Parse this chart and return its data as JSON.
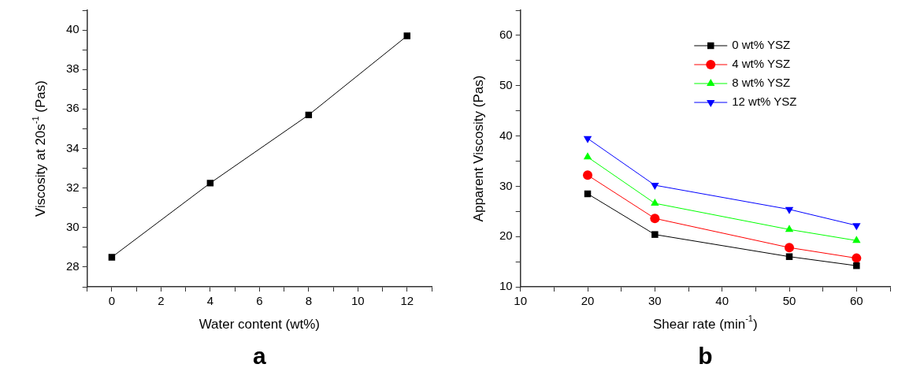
{
  "chart_data": [
    {
      "type": "line",
      "xlabel": "Water content (wt%)",
      "ylabel": "Viscosity at 20s$^{-1}$ (Pas)",
      "x": [
        0,
        4,
        8,
        12
      ],
      "series": [
        {
          "color": "#000000",
          "values": [
            28.5,
            32.25,
            35.7,
            39.7
          ],
          "marker": "square"
        }
      ],
      "xlim": [
        -1,
        13
      ],
      "xticks": [
        {
          "value": -1,
          "label": null
        },
        0,
        {
          "value": 1,
          "label": null
        },
        2,
        {
          "value": 3,
          "label": null
        },
        4,
        {
          "value": 5,
          "label": null
        },
        6,
        {
          "value": 7,
          "label": null
        },
        8,
        {
          "value": 9,
          "label": null
        },
        10,
        {
          "value": 11,
          "label": null
        },
        12,
        {
          "value": 13,
          "label": null
        }
      ],
      "ylim": [
        27,
        41
      ],
      "yticks": [
        {
          "value": 27,
          "label": null
        },
        28,
        {
          "value": 29,
          "label": null
        },
        30,
        {
          "value": 31,
          "label": null
        },
        32,
        {
          "value": 33,
          "label": null
        },
        34,
        {
          "value": 35,
          "label": null
        },
        36,
        {
          "value": 37,
          "label": null
        },
        38,
        {
          "value": 39,
          "label": null
        },
        40,
        {
          "value": 41,
          "label": null
        }
      ],
      "grid": false,
      "legend": false,
      "annotations": [
        "a"
      ]
    },
    {
      "type": "line",
      "xlabel": "Shear rate (min$^{-1}$)",
      "ylabel": "Apparent Viscosity (Pas)",
      "x": [
        20,
        30,
        50,
        60
      ],
      "series": [
        {
          "name": "0 wt% YSZ",
          "color": "#000000",
          "marker": "square",
          "values": [
            28.5,
            20.4,
            16,
            14.2
          ]
        },
        {
          "name": "4 wt% YSZ",
          "color": "#ff0000",
          "marker": "circle",
          "values": [
            32.2,
            23.6,
            17.8,
            15.7
          ]
        },
        {
          "name": "8 wt% YSZ",
          "color": "#00ff00",
          "marker": "triangle",
          "values": [
            35.8,
            26.6,
            21.4,
            19.2
          ]
        },
        {
          "name": "12 wt% YSZ",
          "color": "#0000ff",
          "marker": "triangle-down",
          "values": [
            39.5,
            30.2,
            25.4,
            22.2
          ]
        }
      ],
      "xlim": [
        10,
        65
      ],
      "xticks": [
        10,
        {
          "value": 15,
          "label": null
        },
        20,
        {
          "value": 25,
          "label": null
        },
        30,
        {
          "value": 35,
          "label": null
        },
        40,
        {
          "value": 45,
          "label": null
        },
        50,
        {
          "value": 55,
          "label": null
        },
        60,
        {
          "value": 65,
          "label": null
        }
      ],
      "ylim": [
        10,
        65
      ],
      "yticks": [
        10,
        {
          "value": 15,
          "label": null
        },
        20,
        {
          "value": 25,
          "label": null
        },
        30,
        {
          "value": 35,
          "label": null
        },
        40,
        {
          "value": 45,
          "label": null
        },
        50,
        {
          "value": 55,
          "label": null
        },
        60,
        {
          "value": 65,
          "label": null
        }
      ],
      "grid": false,
      "legend": "top right",
      "annotations": [
        "b"
      ]
    }
  ]
}
